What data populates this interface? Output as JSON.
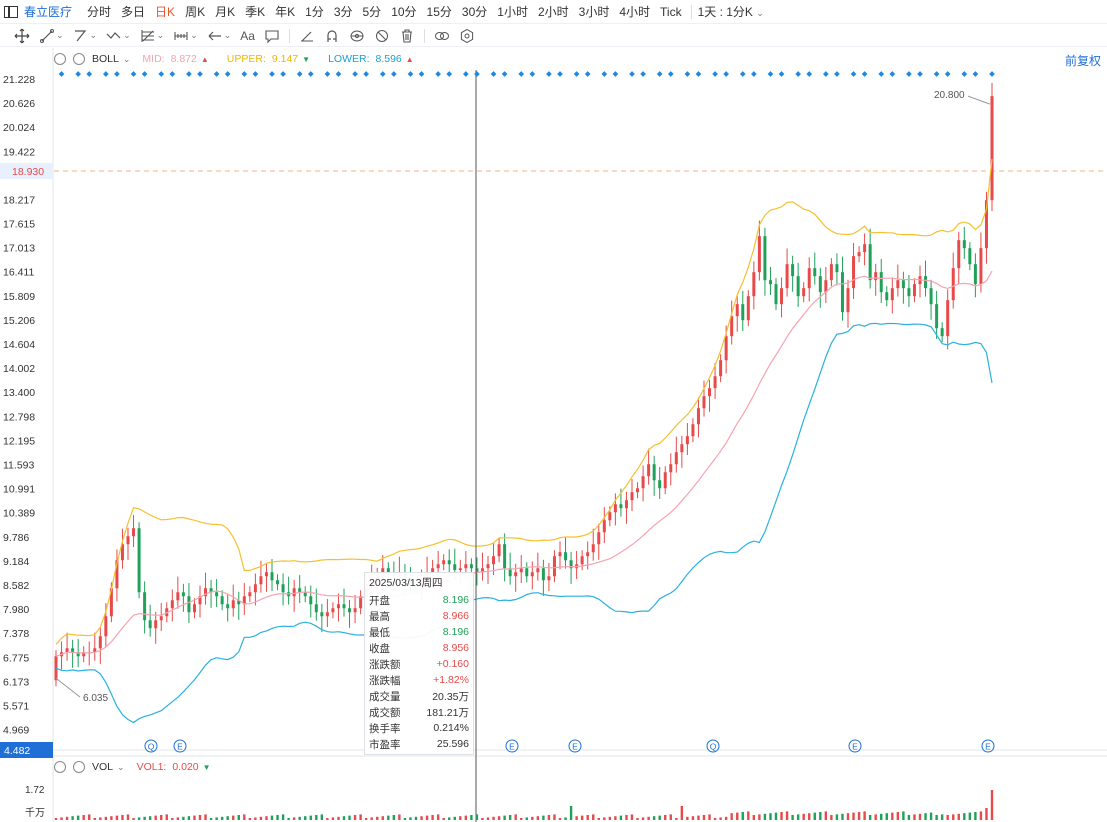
{
  "topbar": {
    "stock_name": "春立医疗",
    "periods": [
      "分时",
      "多日",
      "日K",
      "周K",
      "月K",
      "季K",
      "年K",
      "1分",
      "3分",
      "5分",
      "10分",
      "15分",
      "30分",
      "1小时",
      "2小时",
      "3小时",
      "4小时",
      "Tick"
    ],
    "active_period": "日K",
    "combo_label": "1天 : 1分K"
  },
  "toolbar": {
    "icons": [
      "crosshair-icon",
      "line-tool-icon",
      "polyline-tool-icon",
      "wave-tool-icon",
      "fib-tool-icon",
      "measure-tool-icon",
      "arrow-tool-icon",
      "text-tool-icon",
      "comment-tool-icon",
      "ruler-icon",
      "magnet-icon",
      "hide-icon",
      "lock-icon",
      "delete-icon",
      "link-icon",
      "settings-icon"
    ],
    "text_tool_label": "Aa"
  },
  "price_panel": {
    "indicator_name": "BOLL",
    "mid_label": "MID:",
    "mid_value": "8.872",
    "upper_label": "UPPER:",
    "upper_value": "9.147",
    "lower_label": "LOWER:",
    "lower_value": "8.596",
    "adjust_label": "前复权",
    "current_price_tag": "18.930",
    "bottom_tag": "4.482",
    "max_price_label": "20.800",
    "min_price_label": "6.035",
    "event_markers": [
      "Q",
      "E",
      "E",
      "E",
      "Q",
      "E",
      "E"
    ],
    "colors": {
      "up": "#e84a4a",
      "down": "#20a15a",
      "mid": "#f5a3b0",
      "upper": "#f5c030",
      "lower": "#2ab1de",
      "accent": "#1f6fd6"
    }
  },
  "volume_panel": {
    "indicator_name": "VOL",
    "vol1_label": "VOL1:",
    "vol1_value": "0.020",
    "axis_top": "1.72",
    "axis_unit": "千万"
  },
  "tooltip": {
    "date": "2025/03/13周四",
    "rows": [
      {
        "label": "开盘",
        "value": "8.196",
        "color": "#20a15a"
      },
      {
        "label": "最高",
        "value": "8.966",
        "color": "#e84a4a"
      },
      {
        "label": "最低",
        "value": "8.196",
        "color": "#20a15a"
      },
      {
        "label": "收盘",
        "value": "8.956",
        "color": "#e84a4a"
      },
      {
        "label": "涨跌额",
        "value": "+0.160",
        "color": "#e84a4a"
      },
      {
        "label": "涨跌幅",
        "value": "+1.82%",
        "color": "#e84a4a"
      },
      {
        "label": "成交量",
        "value": "20.35万",
        "color": "#333333"
      },
      {
        "label": "成交额",
        "value": "181.21万",
        "color": "#333333"
      },
      {
        "label": "换手率",
        "value": "0.214%",
        "color": "#333333"
      },
      {
        "label": "市盈率",
        "value": "25.596",
        "color": "#333333"
      }
    ]
  },
  "chart_data": {
    "type": "candlestick",
    "y_ticks": [
      "21.228",
      "20.626",
      "20.024",
      "19.422",
      "18.930",
      "18.217",
      "17.615",
      "17.013",
      "16.411",
      "15.809",
      "15.206",
      "14.604",
      "14.002",
      "13.400",
      "12.798",
      "12.195",
      "11.593",
      "10.991",
      "10.389",
      "9.786",
      "9.184",
      "8.582",
      "7.980",
      "7.378",
      "6.775",
      "6.173",
      "5.571",
      "4.969",
      "4.482"
    ],
    "ylim": [
      4.482,
      21.228
    ],
    "close": [
      6.8,
      6.9,
      7.0,
      6.9,
      6.8,
      6.9,
      6.9,
      7.0,
      7.3,
      7.8,
      8.5,
      9.2,
      9.6,
      9.8,
      10.0,
      8.4,
      7.7,
      7.5,
      7.7,
      7.8,
      8.0,
      8.2,
      8.4,
      8.3,
      7.9,
      8.1,
      8.3,
      8.5,
      8.4,
      8.3,
      8.1,
      8.0,
      8.2,
      8.1,
      8.3,
      8.4,
      8.6,
      8.8,
      8.9,
      8.7,
      8.6,
      8.4,
      8.3,
      8.5,
      8.4,
      8.3,
      8.1,
      7.9,
      7.8,
      7.9,
      8.0,
      8.1,
      8.0,
      7.9,
      8.0,
      8.3,
      8.6,
      8.7,
      8.8,
      9.0,
      8.9,
      8.8,
      8.9,
      8.7,
      8.6,
      8.5,
      8.7,
      8.9,
      9.0,
      9.1,
      9.2,
      9.1,
      8.956,
      9.0,
      9.1,
      9.0,
      8.9,
      9.0,
      9.1,
      9.3,
      9.6,
      9.0,
      8.8,
      8.9,
      9.0,
      8.8,
      8.9,
      9.0,
      8.7,
      8.8,
      9.3,
      9.4,
      9.2,
      9.0,
      9.1,
      9.3,
      9.4,
      9.6,
      9.9,
      10.2,
      10.4,
      10.6,
      10.5,
      10.7,
      10.9,
      11.0,
      11.3,
      11.6,
      11.2,
      11.0,
      11.4,
      11.6,
      11.9,
      12.1,
      12.3,
      12.6,
      13.0,
      13.3,
      13.5,
      13.8,
      14.2,
      14.8,
      15.3,
      15.6,
      15.2,
      15.8,
      16.4,
      17.3,
      16.2,
      16.1,
      15.6,
      16.0,
      16.6,
      16.3,
      15.8,
      16.0,
      16.5,
      16.3,
      15.9,
      16.2,
      16.6,
      16.4,
      15.4,
      16.0,
      16.8,
      16.9,
      17.1,
      16.2,
      16.4,
      15.9,
      15.7,
      16.0,
      16.2,
      16.0,
      15.8,
      16.1,
      16.3,
      16.0,
      15.6,
      15.0,
      14.8,
      15.7,
      16.5,
      17.2,
      17.0,
      16.6,
      16.1,
      17.0,
      18.2,
      20.8
    ],
    "ma_info": "BOLL(20,2)"
  }
}
